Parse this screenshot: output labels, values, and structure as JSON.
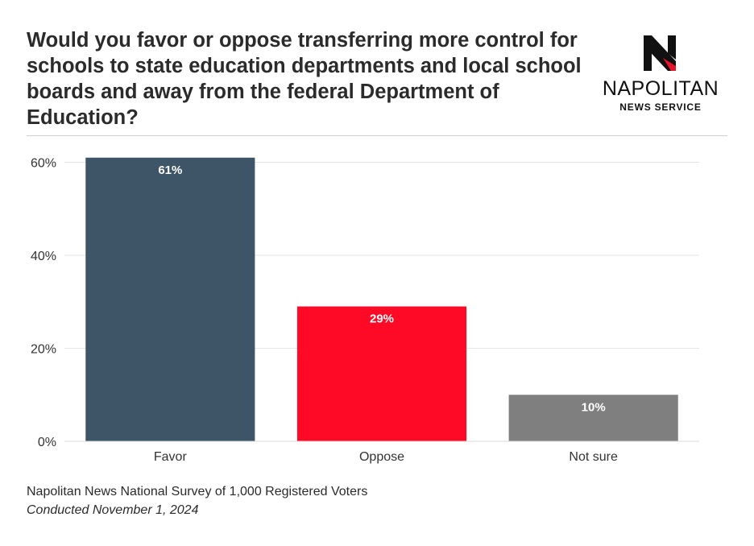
{
  "title": "Would you favor or oppose transferring more control for schools to state education departments and local school boards and away from the federal Department of Education?",
  "logo": {
    "name": "NAPOLITAN",
    "subtitle": "NEWS SERVICE",
    "icon": "napolitan-n-logo-icon",
    "colors": {
      "mark": "#111111",
      "accent": "#e8142a"
    }
  },
  "chart_data": {
    "type": "bar",
    "categories": [
      "Favor",
      "Oppose",
      "Not sure"
    ],
    "values": [
      61,
      29,
      10
    ],
    "data_labels": [
      "61%",
      "29%",
      "10%"
    ],
    "colors": [
      "#3d5566",
      "#ff0a26",
      "#7f7f7f"
    ],
    "yticks": [
      0,
      20,
      40,
      60
    ],
    "ytick_labels": [
      "0%",
      "20%",
      "40%",
      "60%"
    ],
    "ylim": [
      0,
      62
    ],
    "grid": true,
    "xlabel": "",
    "ylabel": ""
  },
  "footer": {
    "source": "Napolitan News National Survey of 1,000 Registered Voters",
    "date": "Conducted November 1, 2024"
  }
}
